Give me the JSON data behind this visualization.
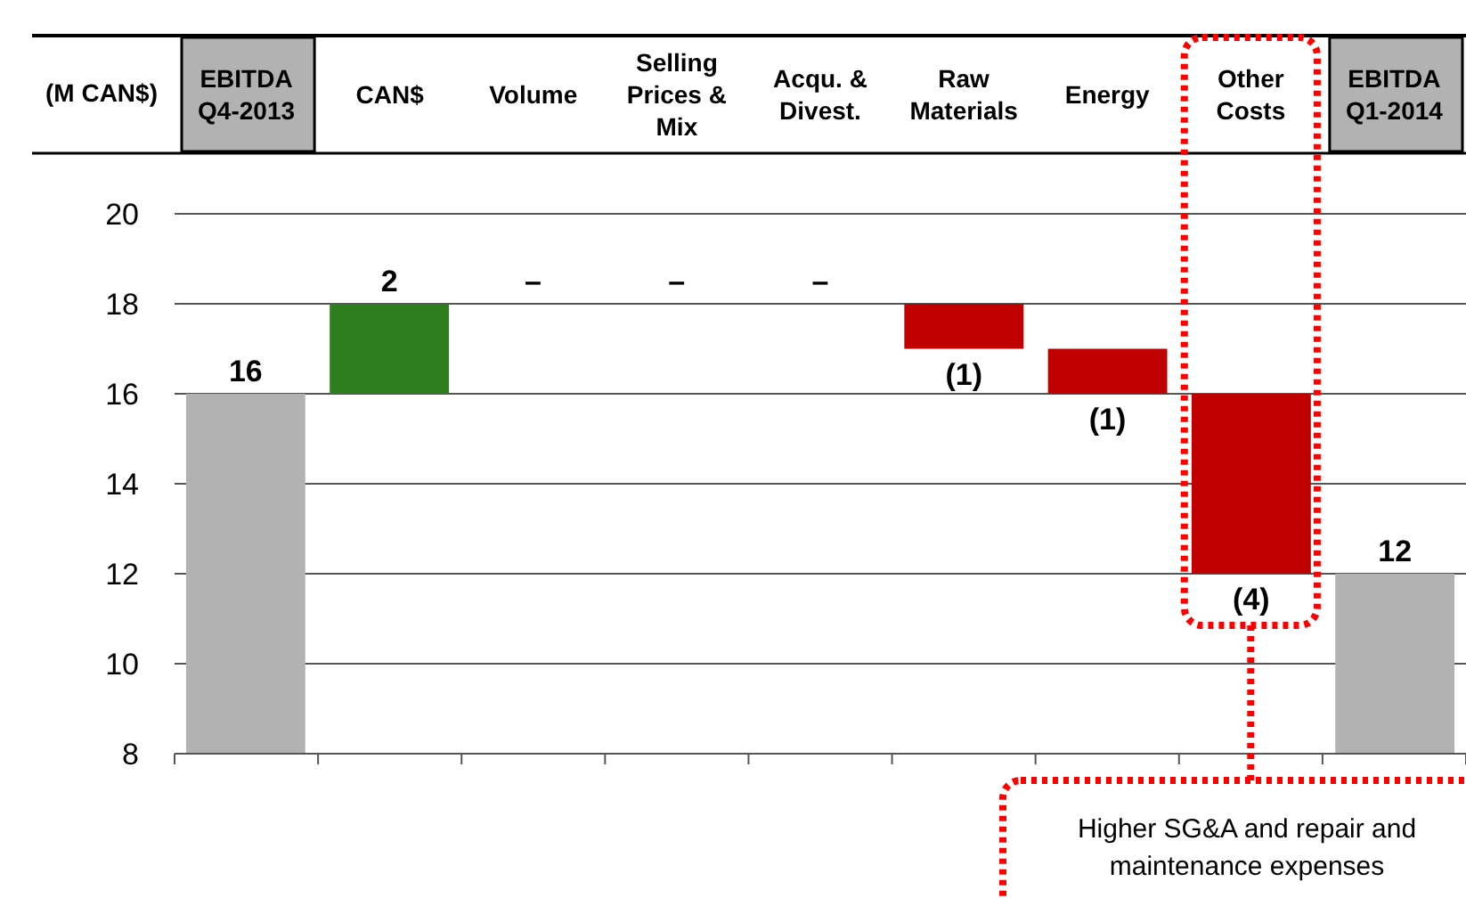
{
  "chart_data": {
    "type": "bar",
    "ylabel": "(M CAN$)",
    "categories": [
      "EBITDA Q4-2013",
      "CAN$",
      "Volume",
      "Selling Prices & Mix",
      "Acqu. & Divest.",
      "Raw Materials",
      "Energy",
      "Other Costs",
      "EBITDA Q1-2014"
    ],
    "values": [
      16,
      2,
      null,
      null,
      null,
      -1,
      -1,
      -4,
      12
    ],
    "base": [
      null,
      16,
      null,
      null,
      null,
      18,
      17,
      16,
      null
    ],
    "colors": [
      "#b2b2b2",
      "#2e7d1e",
      "#c00000",
      "#c00000",
      "#c00000",
      "#c00000",
      "#c00000",
      "#c00000",
      "#b2b2b2"
    ],
    "value_labels": [
      "16",
      "2",
      "–",
      "–",
      "–",
      "(1)",
      "(1)",
      "(4)",
      "12"
    ],
    "ylim": [
      8,
      20
    ],
    "yticks": [
      8,
      10,
      12,
      14,
      16,
      18,
      20
    ],
    "grid": "y",
    "annotations": [
      "Higher SG&A and repair and maintenance expenses"
    ]
  }
}
